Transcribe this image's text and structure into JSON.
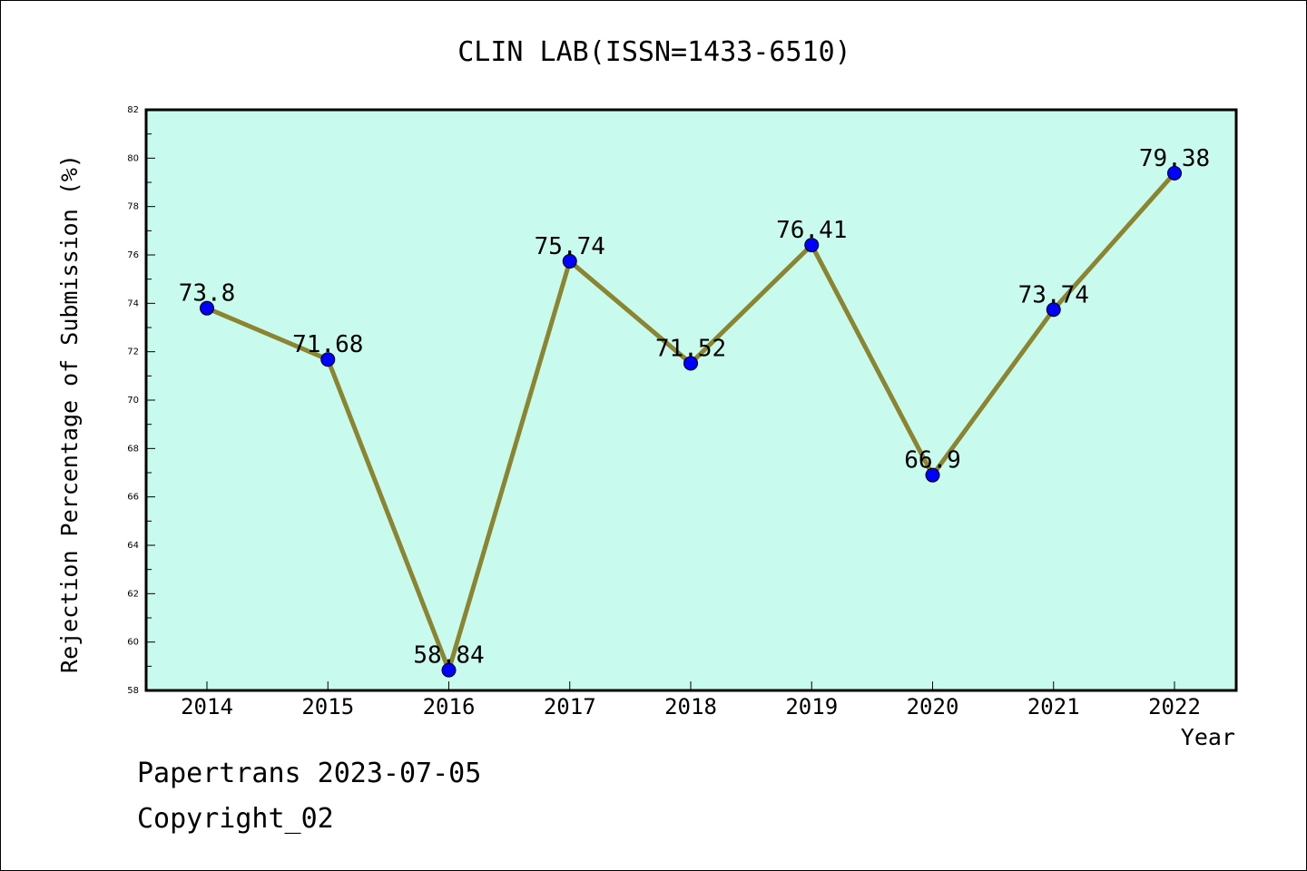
{
  "chart_data": {
    "type": "line",
    "title": "CLIN LAB(ISSN=1433-6510)",
    "xlabel": "Year",
    "ylabel": "Rejection Percentage of Submission (%)",
    "categories": [
      "2014",
      "2015",
      "2016",
      "2017",
      "2018",
      "2019",
      "2020",
      "2021",
      "2022"
    ],
    "values": [
      73.8,
      71.68,
      58.84,
      75.74,
      71.52,
      76.41,
      66.9,
      73.74,
      79.38
    ],
    "data_labels": [
      "73.8",
      "71.68",
      "58.84",
      "75.74",
      "71.52",
      "76.41",
      "66.9",
      "73.74",
      "79.38"
    ],
    "ylim": [
      58,
      82
    ],
    "yticks": [
      "58",
      "60",
      "62",
      "64",
      "66",
      "68",
      "70",
      "72",
      "74",
      "76",
      "78",
      "80",
      "82"
    ],
    "grid": false,
    "colors": {
      "plot_background": "#c8fbee",
      "line": "#8b8431",
      "marker": "#0000ff"
    }
  },
  "footer": {
    "line1": "Papertrans 2023-07-05",
    "line2": "Copyright_02"
  }
}
